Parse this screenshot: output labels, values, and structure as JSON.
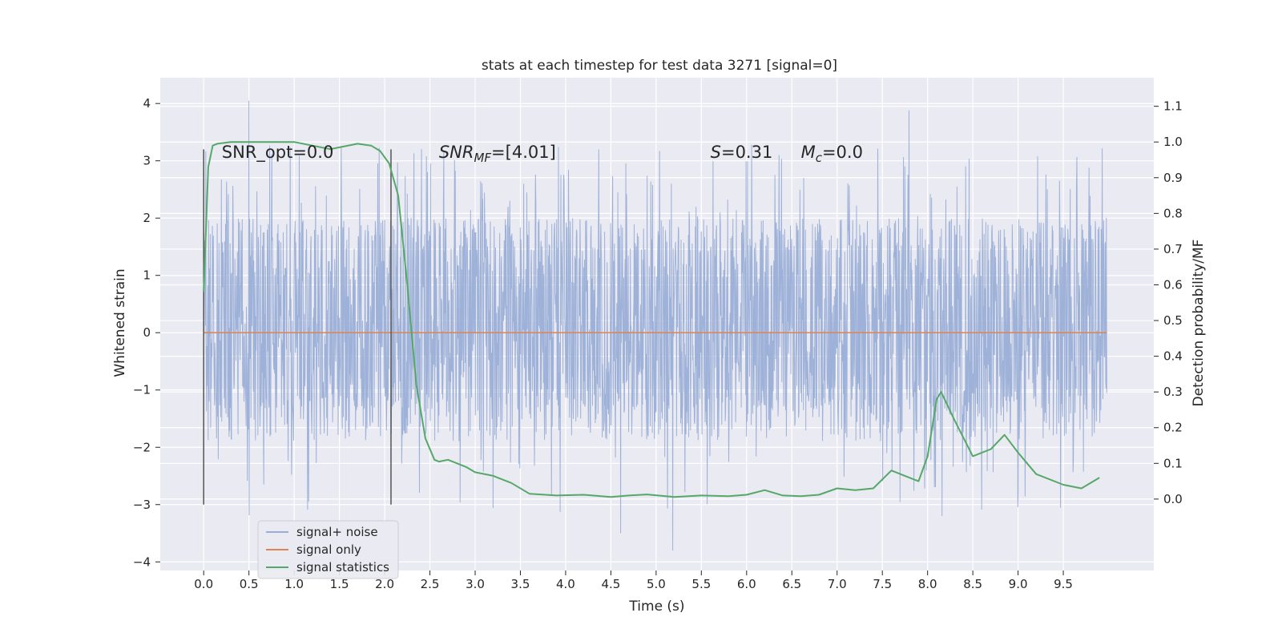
{
  "chart_data": {
    "type": "line",
    "title": "stats at each timestep for test data 3271 [signal=0]",
    "xlabel": "Time (s)",
    "ylabel": "Whitened strain",
    "ylabel_right": "Detection probability/MF",
    "xlim": [
      -0.48,
      10.5
    ],
    "ylim": [
      -4.15,
      4.45
    ],
    "ylim_right": [
      -0.2,
      1.18
    ],
    "x_ticks": [
      0.0,
      0.5,
      1.0,
      1.5,
      2.0,
      2.5,
      3.0,
      3.5,
      4.0,
      4.5,
      5.0,
      5.5,
      6.0,
      6.5,
      7.0,
      7.5,
      8.0,
      8.5,
      9.0,
      9.5
    ],
    "x_tick_labels": [
      "0.0",
      "0.5",
      "1.0",
      "1.5",
      "2.0",
      "2.5",
      "3.0",
      "3.5",
      "4.0",
      "4.5",
      "5.0",
      "5.5",
      "6.0",
      "6.5",
      "7.0",
      "7.5",
      "8.0",
      "8.5",
      "9.0",
      "9.5"
    ],
    "y_ticks": [
      -4,
      -3,
      -2,
      -1,
      0,
      1,
      2,
      3,
      4
    ],
    "y_tick_labels": [
      "−4",
      "−3",
      "−2",
      "−1",
      "0",
      "1",
      "2",
      "3",
      "4"
    ],
    "y_right_ticks": [
      0.0,
      0.1,
      0.2,
      0.3,
      0.4,
      0.5,
      0.6,
      0.7,
      0.8,
      0.9,
      1.0,
      1.1
    ],
    "y_right_tick_labels": [
      "0.0",
      "0.1",
      "0.2",
      "0.3",
      "0.4",
      "0.5",
      "0.6",
      "0.7",
      "0.8",
      "0.9",
      "1.0",
      "1.1"
    ],
    "grid": true,
    "legend_position": "lower-left",
    "series": [
      {
        "name": "signal+ noise",
        "color": "#9aaed6",
        "description_of_values": "noise band between approx -1.6 and 2.0 with spikes up to 4.05 and down to -3.8",
        "x_range": [
          0.0,
          9.98
        ]
      },
      {
        "name": "signal only",
        "color": "#dd8452",
        "x": [
          0.0,
          9.98
        ],
        "y": [
          0.0,
          0.0
        ]
      },
      {
        "name": "signal statistics",
        "color": "#55a868",
        "axis": "right",
        "x": [
          0.0,
          0.05,
          0.1,
          0.15,
          0.3,
          0.5,
          0.7,
          1.0,
          1.2,
          1.4,
          1.5,
          1.7,
          1.85,
          1.95,
          2.05,
          2.15,
          2.25,
          2.35,
          2.45,
          2.55,
          2.6,
          2.7,
          2.9,
          3.0,
          3.2,
          3.4,
          3.6,
          3.9,
          4.2,
          4.5,
          4.7,
          4.9,
          5.2,
          5.5,
          5.8,
          6.0,
          6.2,
          6.4,
          6.6,
          6.8,
          7.0,
          7.2,
          7.4,
          7.6,
          7.75,
          7.9,
          8.0,
          8.1,
          8.15,
          8.3,
          8.5,
          8.7,
          8.85,
          9.0,
          9.2,
          9.5,
          9.7,
          9.9
        ],
        "y": [
          0.58,
          0.93,
          0.99,
          0.995,
          1.0,
          1.0,
          1.0,
          1.0,
          0.99,
          0.98,
          0.985,
          0.995,
          0.99,
          0.975,
          0.94,
          0.85,
          0.6,
          0.32,
          0.17,
          0.11,
          0.105,
          0.11,
          0.09,
          0.075,
          0.065,
          0.045,
          0.015,
          0.01,
          0.012,
          0.006,
          0.01,
          0.013,
          0.006,
          0.01,
          0.008,
          0.012,
          0.025,
          0.01,
          0.008,
          0.012,
          0.03,
          0.025,
          0.03,
          0.08,
          0.065,
          0.05,
          0.12,
          0.28,
          0.3,
          0.22,
          0.12,
          0.14,
          0.18,
          0.13,
          0.07,
          0.04,
          0.03,
          0.06
        ]
      }
    ],
    "vlines": [
      {
        "x": 0.0,
        "ymin": -3.0,
        "ymax": 3.2
      },
      {
        "x": 2.07,
        "ymin": -3.0,
        "ymax": 3.2
      }
    ],
    "annotations": [
      {
        "text": "SNR_opt=0.0",
        "x": 0.2,
        "y": 3.15
      },
      {
        "text": "SNR",
        "sub": "MF",
        "rest": "=[4.01]",
        "italic": true,
        "x": 2.6,
        "y": 3.15
      },
      {
        "text": "S",
        "rest": "=0.31",
        "italic": true,
        "x": 5.6,
        "y": 3.15
      },
      {
        "text": "M",
        "sub": "c",
        "rest": "=0.0",
        "italic": true,
        "x": 6.6,
        "y": 3.15
      }
    ],
    "legend": [
      {
        "label": "signal+ noise",
        "color": "#9aaed6"
      },
      {
        "label": "signal only",
        "color": "#dd8452"
      },
      {
        "label": "signal statistics",
        "color": "#55a868"
      }
    ]
  }
}
